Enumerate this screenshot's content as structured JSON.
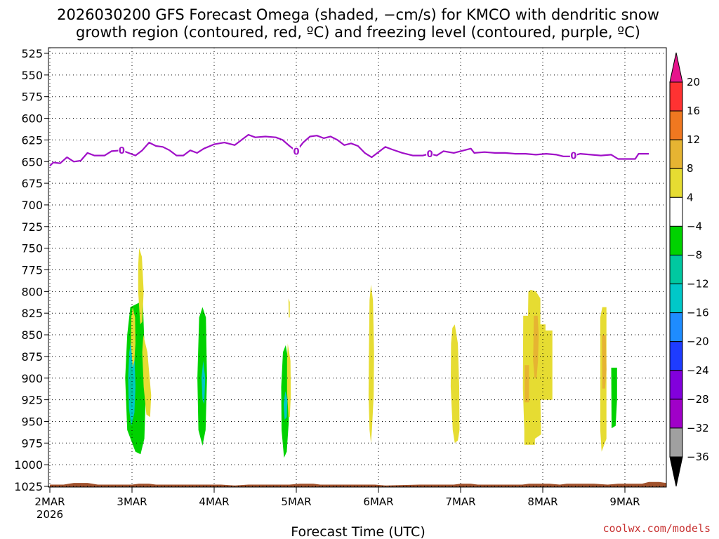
{
  "chart_data": {
    "type": "heatmap",
    "title_line1": "2026030200 GFS Forecast Omega (shaded, −cm/s) for KMCO with dendritic snow",
    "title_line2": "growth region (contoured, red, ºC) and freezing level (contoured, purple, ºC)",
    "xlabel": "Forecast Time (UTC)",
    "credit": "coolwx.com/models",
    "x_unit": "hours since 2026-03-02 00 UTC",
    "x_ticks": [
      {
        "label": "2MAR",
        "sub": "2026",
        "value": 0
      },
      {
        "label": "3MAR",
        "value": 24
      },
      {
        "label": "4MAR",
        "value": 48
      },
      {
        "label": "5MAR",
        "value": 72
      },
      {
        "label": "6MAR",
        "value": 96
      },
      {
        "label": "7MAR",
        "value": 120
      },
      {
        "label": "8MAR",
        "value": 144
      },
      {
        "label": "9MAR",
        "value": 168
      }
    ],
    "xlim": [
      0,
      180
    ],
    "ylabel_unit": "hPa",
    "y_ticks": [
      "525",
      "550",
      "575",
      "600",
      "625",
      "650",
      "675",
      "700",
      "725",
      "750",
      "775",
      "800",
      "825",
      "850",
      "875",
      "900",
      "925",
      "950",
      "975",
      "1000",
      "1025"
    ],
    "ylim": [
      518,
      1030
    ],
    "colorbar": {
      "levels": [
        "20",
        "16",
        "12",
        "8",
        "4",
        "−4",
        "−8",
        "−12",
        "−16",
        "−20",
        "−24",
        "−28",
        "−32",
        "−36"
      ],
      "bands": [
        {
          "color": "#ff3232",
          "range": [
            16,
            20
          ]
        },
        {
          "color": "#f07820",
          "range": [
            12,
            16
          ]
        },
        {
          "color": "#e6b432",
          "range": [
            8,
            12
          ]
        },
        {
          "color": "#e6dc32",
          "range": [
            4,
            8
          ]
        },
        {
          "color": "#ffffff",
          "range": [
            -4,
            4
          ]
        },
        {
          "color": "#00d200",
          "range": [
            -8,
            -4
          ]
        },
        {
          "color": "#00c8a0",
          "range": [
            -12,
            -8
          ]
        },
        {
          "color": "#00c8c8",
          "range": [
            -16,
            -12
          ]
        },
        {
          "color": "#1e8cff",
          "range": [
            -20,
            -16
          ]
        },
        {
          "color": "#1e3cff",
          "range": [
            -24,
            -20
          ]
        },
        {
          "color": "#8200dc",
          "range": [
            -28,
            -24
          ]
        },
        {
          "color": "#a000c8",
          "range": [
            -32,
            -28
          ]
        },
        {
          "color": "#a0a0a0",
          "range": [
            -36,
            -32
          ]
        }
      ],
      "top_triangle_color": "#e6148c",
      "bottom_triangle_color": "#000000"
    },
    "freezing_level": {
      "label": "0",
      "color": "#a010c8",
      "label_hours": [
        21,
        72,
        111,
        153
      ],
      "points": [
        [
          0,
          655
        ],
        [
          1,
          651
        ],
        [
          3,
          652
        ],
        [
          5,
          645
        ],
        [
          7,
          650
        ],
        [
          9,
          649
        ],
        [
          11,
          640
        ],
        [
          13,
          643
        ],
        [
          16,
          643
        ],
        [
          18,
          638
        ],
        [
          21,
          637
        ],
        [
          23,
          640
        ],
        [
          25,
          643
        ],
        [
          27,
          637
        ],
        [
          29,
          628
        ],
        [
          31,
          632
        ],
        [
          33,
          633
        ],
        [
          35,
          637
        ],
        [
          37,
          643
        ],
        [
          39,
          643
        ],
        [
          41,
          637
        ],
        [
          43,
          640
        ],
        [
          45,
          635
        ],
        [
          48,
          630
        ],
        [
          51,
          628
        ],
        [
          54,
          631
        ],
        [
          56,
          625
        ],
        [
          58,
          619
        ],
        [
          60,
          622
        ],
        [
          63,
          621
        ],
        [
          66,
          622
        ],
        [
          68,
          625
        ],
        [
          70,
          632
        ],
        [
          72,
          638
        ],
        [
          74,
          628
        ],
        [
          76,
          621
        ],
        [
          78,
          620
        ],
        [
          80,
          623
        ],
        [
          82,
          621
        ],
        [
          84,
          625
        ],
        [
          86,
          631
        ],
        [
          88,
          629
        ],
        [
          90,
          632
        ],
        [
          92,
          640
        ],
        [
          94,
          645
        ],
        [
          96,
          639
        ],
        [
          98,
          633
        ],
        [
          100,
          636
        ],
        [
          103,
          640
        ],
        [
          106,
          643
        ],
        [
          109,
          643
        ],
        [
          111,
          641
        ],
        [
          113,
          643
        ],
        [
          115,
          638
        ],
        [
          118,
          640
        ],
        [
          121,
          637
        ],
        [
          123,
          635
        ],
        [
          124,
          640
        ],
        [
          127,
          639
        ],
        [
          130,
          640
        ],
        [
          133,
          640
        ],
        [
          136,
          641
        ],
        [
          139,
          641
        ],
        [
          142,
          642
        ],
        [
          145,
          641
        ],
        [
          148,
          642
        ],
        [
          150,
          644
        ],
        [
          152,
          644
        ],
        [
          155,
          641
        ],
        [
          158,
          642
        ],
        [
          161,
          643
        ],
        [
          164,
          642
        ],
        [
          166,
          647
        ],
        [
          171,
          647
        ],
        [
          172,
          641
        ],
        [
          175,
          641
        ]
      ]
    },
    "omega_regions": [
      {
        "band": 5,
        "points": [
          [
            26.5,
            812
          ],
          [
            27.2,
            815
          ],
          [
            27.6,
            860
          ],
          [
            28,
            920
          ],
          [
            27.6,
            970
          ],
          [
            26.5,
            988
          ],
          [
            25,
            985
          ],
          [
            22.6,
            960
          ],
          [
            22,
            900
          ],
          [
            22.6,
            850
          ],
          [
            23.5,
            818
          ]
        ]
      },
      {
        "band": 7,
        "points": [
          [
            23.8,
            855
          ],
          [
            24.7,
            870
          ],
          [
            25,
            910
          ],
          [
            24.7,
            940
          ],
          [
            23.8,
            955
          ],
          [
            23.1,
            935
          ],
          [
            22.9,
            900
          ],
          [
            23.2,
            870
          ]
        ]
      },
      {
        "band": 6,
        "points": [
          [
            23.7,
            880
          ],
          [
            24.3,
            895
          ],
          [
            24.4,
            920
          ],
          [
            23.8,
            935
          ],
          [
            23.3,
            920
          ],
          [
            23.3,
            895
          ]
        ]
      },
      {
        "band": 3,
        "points": [
          [
            24.2,
            818
          ],
          [
            24.9,
            830
          ],
          [
            25,
            860
          ],
          [
            24.7,
            880
          ],
          [
            24.2,
            888
          ],
          [
            23.7,
            860
          ],
          [
            23.8,
            830
          ]
        ]
      },
      {
        "band": 3,
        "points": [
          [
            26.1,
            750
          ],
          [
            26.9,
            760
          ],
          [
            27.4,
            800
          ],
          [
            27,
            835
          ],
          [
            26.4,
            838
          ],
          [
            25.8,
            800
          ],
          [
            25.8,
            770
          ]
        ]
      },
      {
        "band": 3,
        "points": [
          [
            27.3,
            850
          ],
          [
            28.5,
            870
          ],
          [
            29.6,
            920
          ],
          [
            29.3,
            945
          ],
          [
            28.2,
            942
          ],
          [
            27.4,
            910
          ],
          [
            27,
            870
          ]
        ]
      },
      {
        "band": 5,
        "points": [
          [
            44.6,
            818
          ],
          [
            45.6,
            830
          ],
          [
            45.9,
            900
          ],
          [
            45.5,
            960
          ],
          [
            44.6,
            978
          ],
          [
            43.4,
            960
          ],
          [
            43.1,
            900
          ],
          [
            43.6,
            830
          ]
        ]
      },
      {
        "band": 7,
        "points": [
          [
            44.8,
            880
          ],
          [
            45.4,
            900
          ],
          [
            45.1,
            930
          ],
          [
            44.6,
            925
          ],
          [
            44.3,
            900
          ]
        ]
      },
      {
        "band": 5,
        "points": [
          [
            68.9,
            862
          ],
          [
            69.7,
            880
          ],
          [
            69.8,
            950
          ],
          [
            69.2,
            985
          ],
          [
            68.4,
            992
          ],
          [
            67.7,
            960
          ],
          [
            67.6,
            910
          ],
          [
            68.1,
            870
          ]
        ]
      },
      {
        "band": 7,
        "points": [
          [
            68.8,
            915
          ],
          [
            69.4,
            925
          ],
          [
            69.2,
            945
          ],
          [
            68.6,
            948
          ],
          [
            68.3,
            930
          ]
        ]
      },
      {
        "band": 3,
        "points": [
          [
            69.5,
            860
          ],
          [
            70.3,
            880
          ],
          [
            70.4,
            920
          ],
          [
            70.1,
            945
          ],
          [
            69.7,
            945
          ],
          [
            69.3,
            915
          ],
          [
            69.3,
            880
          ]
        ]
      },
      {
        "band": 3,
        "points": [
          [
            69.7,
            808
          ],
          [
            70.1,
            812
          ],
          [
            70.1,
            830
          ],
          [
            69.8,
            830
          ]
        ]
      },
      {
        "band": 3,
        "points": [
          [
            93.8,
            792
          ],
          [
            94.4,
            810
          ],
          [
            94.7,
            870
          ],
          [
            94.6,
            920
          ],
          [
            94.1,
            960
          ],
          [
            93.8,
            975
          ],
          [
            93.4,
            960
          ],
          [
            93.1,
            920
          ],
          [
            93.2,
            870
          ],
          [
            93.4,
            810
          ]
        ]
      },
      {
        "band": 3,
        "points": [
          [
            118.3,
            838
          ],
          [
            119.2,
            860
          ],
          [
            119.6,
            910
          ],
          [
            119.7,
            960
          ],
          [
            119.2,
            972
          ],
          [
            118.3,
            975
          ],
          [
            117.7,
            960
          ],
          [
            117.1,
            910
          ],
          [
            117.2,
            860
          ],
          [
            117.6,
            842
          ]
        ]
      },
      {
        "band": 3,
        "points": [
          [
            140.5,
            798
          ],
          [
            142,
            800
          ],
          [
            143.3,
            808
          ],
          [
            143.3,
            838
          ],
          [
            144.8,
            838
          ],
          [
            144.8,
            845
          ],
          [
            146.8,
            845
          ],
          [
            146.8,
            925
          ],
          [
            143.3,
            925
          ],
          [
            143.5,
            965
          ],
          [
            141.7,
            970
          ],
          [
            141.7,
            977
          ],
          [
            138.6,
            977
          ],
          [
            138.6,
            960
          ],
          [
            138.2,
            912
          ],
          [
            138.3,
            828
          ],
          [
            139.7,
            828
          ],
          [
            139.8,
            800
          ]
        ]
      },
      {
        "band": 2,
        "points": [
          [
            141.4,
            828
          ],
          [
            142.5,
            828
          ],
          [
            142.8,
            850
          ],
          [
            142.6,
            880
          ],
          [
            142.2,
            900
          ],
          [
            141.6,
            900
          ],
          [
            141.2,
            880
          ]
        ]
      },
      {
        "band": 2,
        "points": [
          [
            138.7,
            885
          ],
          [
            140,
            885
          ],
          [
            140,
            928
          ],
          [
            138.7,
            928
          ]
        ]
      },
      {
        "band": 3,
        "points": [
          [
            161.4,
            818
          ],
          [
            162.6,
            818
          ],
          [
            162.6,
            970
          ],
          [
            161.2,
            985
          ],
          [
            160.8,
            960
          ],
          [
            160.8,
            830
          ]
        ]
      },
      {
        "band": 2,
        "points": [
          [
            161.3,
            850
          ],
          [
            162.4,
            850
          ],
          [
            162.6,
            890
          ],
          [
            162.2,
            912
          ],
          [
            161.4,
            912
          ]
        ]
      },
      {
        "band": 5,
        "points": [
          [
            164,
            888
          ],
          [
            165.7,
            888
          ],
          [
            165.7,
            925
          ],
          [
            165.3,
            955
          ],
          [
            164.1,
            958
          ]
        ]
      }
    ],
    "topography": {
      "color": "#a0522d",
      "top_points": [
        [
          0,
          1023
        ],
        [
          4,
          1023
        ],
        [
          7,
          1021
        ],
        [
          11,
          1021
        ],
        [
          14,
          1023
        ],
        [
          24,
          1023
        ],
        [
          26,
          1022
        ],
        [
          29,
          1022
        ],
        [
          31,
          1023
        ],
        [
          50,
          1023
        ],
        [
          54,
          1024
        ],
        [
          58,
          1023
        ],
        [
          70,
          1023
        ],
        [
          73,
          1022
        ],
        [
          77,
          1022
        ],
        [
          79,
          1023
        ],
        [
          95,
          1023
        ],
        [
          98,
          1024
        ],
        [
          108,
          1023
        ],
        [
          118,
          1023
        ],
        [
          120,
          1022
        ],
        [
          123,
          1022
        ],
        [
          125,
          1023
        ],
        [
          138,
          1023
        ],
        [
          140,
          1022
        ],
        [
          146,
          1022
        ],
        [
          149,
          1023
        ],
        [
          151,
          1022
        ],
        [
          159,
          1022
        ],
        [
          163,
          1023
        ],
        [
          166,
          1022
        ],
        [
          173,
          1022
        ],
        [
          175,
          1020
        ],
        [
          178,
          1020
        ],
        [
          180,
          1021
        ]
      ]
    }
  }
}
